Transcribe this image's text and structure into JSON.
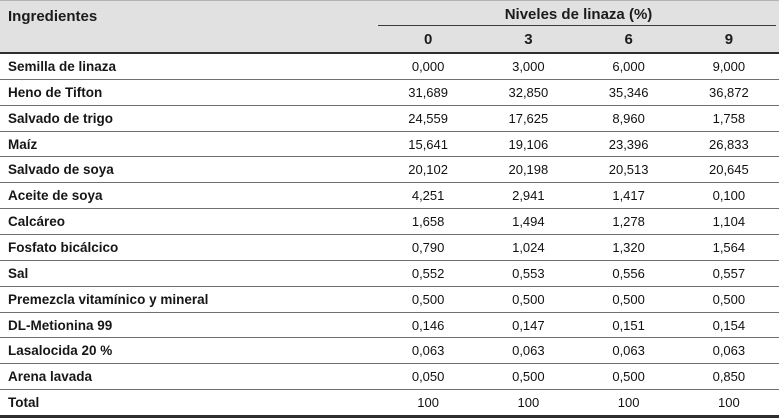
{
  "table": {
    "header": {
      "ingredients_label": "Ingredientes",
      "group_label": "Niveles de linaza (%)",
      "levels": [
        "0",
        "3",
        "6",
        "9"
      ]
    },
    "rows": [
      {
        "label": "Semilla de linaza",
        "values": [
          "0,000",
          "3,000",
          "6,000",
          "9,000"
        ]
      },
      {
        "label": "Heno de Tifton",
        "values": [
          "31,689",
          "32,850",
          "35,346",
          "36,872"
        ]
      },
      {
        "label": "Salvado de trigo",
        "values": [
          "24,559",
          "17,625",
          "8,960",
          "1,758"
        ]
      },
      {
        "label": "Maíz",
        "values": [
          "15,641",
          "19,106",
          "23,396",
          "26,833"
        ]
      },
      {
        "label": "Salvado de soya",
        "values": [
          "20,102",
          "20,198",
          "20,513",
          "20,645"
        ]
      },
      {
        "label": "Aceite de soya",
        "values": [
          "4,251",
          "2,941",
          "1,417",
          "0,100"
        ]
      },
      {
        "label": "Calcáreo",
        "values": [
          "1,658",
          "1,494",
          "1,278",
          "1,104"
        ]
      },
      {
        "label": "Fosfato bicálcico",
        "values": [
          "0,790",
          "1,024",
          "1,320",
          "1,564"
        ]
      },
      {
        "label": "Sal",
        "values": [
          "0,552",
          "0,553",
          "0,556",
          "0,557"
        ]
      },
      {
        "label": "Premezcla vitamínico y mineral",
        "values": [
          "0,500",
          "0,500",
          "0,500",
          "0,500"
        ]
      },
      {
        "label": "DL-Metionina 99",
        "values": [
          "0,146",
          "0,147",
          "0,151",
          "0,154"
        ]
      },
      {
        "label": "Lasalocida 20 %",
        "values": [
          "0,063",
          "0,063",
          "0,063",
          "0,063"
        ]
      },
      {
        "label": "Arena lavada",
        "values": [
          "0,050",
          "0,500",
          "0,500",
          "0,850"
        ]
      },
      {
        "label": "Total",
        "values": [
          "100",
          "100",
          "100",
          "100"
        ]
      }
    ],
    "colors": {
      "header_background": "#e1e1e1",
      "dark_rule": "#2e2e2e",
      "row_separator": "#6e6f71",
      "text": "#161616"
    }
  }
}
